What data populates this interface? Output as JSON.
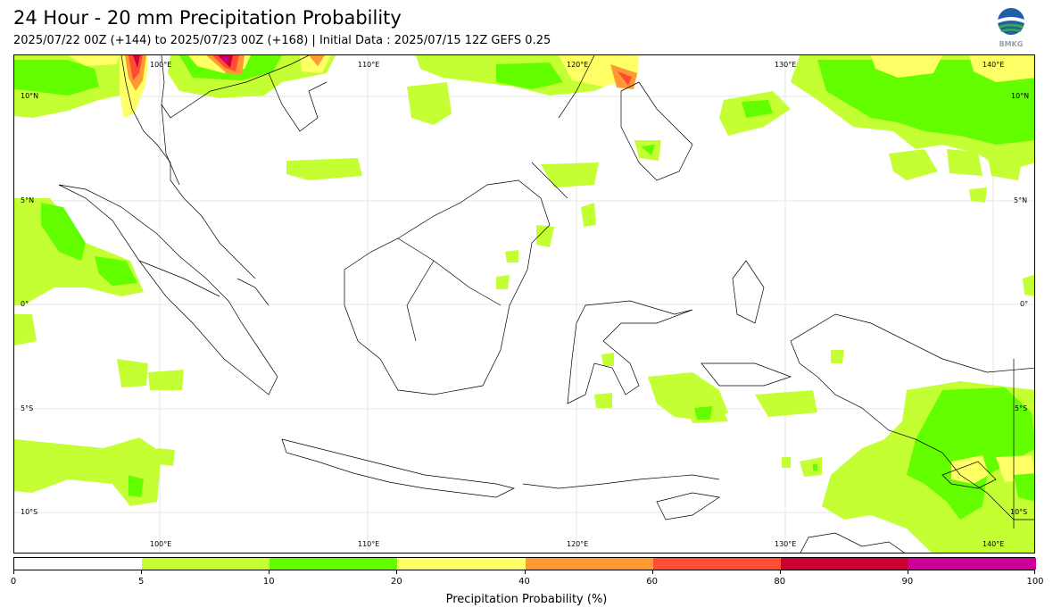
{
  "title": "24 Hour - 20 mm Precipitation Probability",
  "subtitle": "2025/07/22 00Z (+144) to 2025/07/23 00Z (+168) | Initial Data : 2025/07/15 12Z GEFS 0.25",
  "logo": {
    "icon": "bmkg-logo-icon",
    "text": "BMKG"
  },
  "map": {
    "top_lon_labels": [
      "100°E",
      "110°E",
      "120°E",
      "130°E",
      "140°E"
    ],
    "bottom_lon_labels": [
      "100°E",
      "110°E",
      "120°E",
      "130°E",
      "140°E"
    ],
    "left_lat_labels": [
      "10°N",
      "5°N",
      "0°",
      "5°S",
      "10°S"
    ],
    "right_lat_labels": [
      "10°N",
      "5°N",
      "0°",
      "5°S",
      "10°S"
    ],
    "lon_range": [
      93,
      142
    ],
    "lat_range": [
      -12,
      12
    ]
  },
  "colorbar": {
    "label": "Precipitation Probability (%)",
    "ticks": [
      "0",
      "5",
      "10",
      "20",
      "40",
      "60",
      "80",
      "90",
      "100"
    ],
    "colors": [
      "#ffffff",
      "#c4ff33",
      "#63ff00",
      "#ffff66",
      "#ff9933",
      "#ff4d33",
      "#cc0033",
      "#cc0099"
    ]
  },
  "palette": {
    "land_outline": "#000000",
    "p5": "#c4ff33",
    "p10": "#63ff00",
    "p20": "#ffff66",
    "p40": "#ff9933",
    "p60": "#ff4d33",
    "p80": "#cc0033",
    "p90": "#cc0099"
  }
}
